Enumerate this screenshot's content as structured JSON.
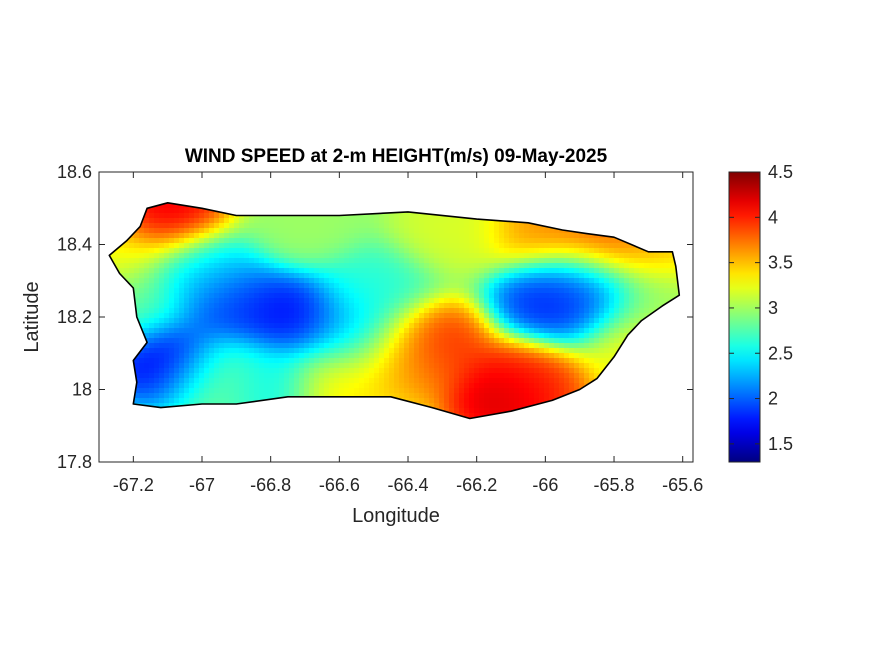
{
  "chart_data": {
    "type": "heatmap",
    "title": "WIND SPEED at 2-m HEIGHT(m/s) 09-May-2025",
    "xlabel": "Longitude",
    "ylabel": "Latitude",
    "xlim": [
      -67.3,
      -65.57
    ],
    "ylim": [
      17.8,
      18.6
    ],
    "xticks": [
      -67.2,
      -67,
      -66.8,
      -66.6,
      -66.4,
      -66.2,
      -66,
      -65.8,
      -65.6
    ],
    "xtick_labels": [
      "-67.2",
      "-67",
      "-66.8",
      "-66.6",
      "-66.4",
      "-66.2",
      "-66",
      "-65.8",
      "-65.6"
    ],
    "yticks": [
      17.8,
      18,
      18.2,
      18.4,
      18.6
    ],
    "ytick_labels": [
      "17.8",
      "18",
      "18.2",
      "18.4",
      "18.6"
    ],
    "colormap": "jet",
    "colorbar": {
      "range": [
        1.3,
        4.5
      ],
      "ticks": [
        1.5,
        2,
        2.5,
        3,
        3.5,
        4,
        4.5
      ],
      "tick_labels": [
        "1.5",
        "2",
        "2.5",
        "3",
        "3.5",
        "4",
        "4.5"
      ]
    },
    "background_value": 2.9,
    "field_features": [
      {
        "lon": -67.1,
        "lat": 18.08,
        "value": 1.5
      },
      {
        "lon": -66.74,
        "lat": 18.2,
        "value": 1.6
      },
      {
        "lon": -66.92,
        "lat": 18.24,
        "value": 1.8
      },
      {
        "lon": -65.97,
        "lat": 18.24,
        "value": 1.7
      },
      {
        "lon": -65.88,
        "lat": 18.28,
        "value": 1.9
      },
      {
        "lon": -67.0,
        "lat": 18.33,
        "value": 2.4
      },
      {
        "lon": -66.5,
        "lat": 18.28,
        "value": 2.6
      },
      {
        "lon": -66.55,
        "lat": 18.15,
        "value": 2.3
      },
      {
        "lon": -66.82,
        "lat": 18.02,
        "value": 2.4
      },
      {
        "lon": -67.2,
        "lat": 18.23,
        "value": 2.8
      },
      {
        "lon": -67.1,
        "lat": 18.48,
        "value": 4.3
      },
      {
        "lon": -66.12,
        "lat": 17.98,
        "value": 4.4
      },
      {
        "lon": -66.33,
        "lat": 18.12,
        "value": 4.1
      },
      {
        "lon": -66.42,
        "lat": 18.07,
        "value": 3.6
      },
      {
        "lon": -66.04,
        "lat": 18.02,
        "value": 4.0
      },
      {
        "lon": -65.82,
        "lat": 18.4,
        "value": 4.0
      },
      {
        "lon": -65.66,
        "lat": 18.4,
        "value": 3.5
      },
      {
        "lon": -66.0,
        "lat": 18.44,
        "value": 3.7
      },
      {
        "lon": -66.28,
        "lat": 18.44,
        "value": 3.2
      },
      {
        "lon": -66.6,
        "lat": 18.02,
        "value": 3.4
      },
      {
        "lon": -66.95,
        "lat": 18.03,
        "value": 3.0
      },
      {
        "lon": -65.74,
        "lat": 18.12,
        "value": 3.3
      },
      {
        "lon": -65.68,
        "lat": 18.25,
        "value": 3.0
      },
      {
        "lon": -66.7,
        "lat": 18.45,
        "value": 3.0
      },
      {
        "lon": -67.26,
        "lat": 18.37,
        "value": 3.3
      }
    ],
    "island_outline": [
      [
        -67.27,
        18.37
      ],
      [
        -67.22,
        18.41
      ],
      [
        -67.18,
        18.45
      ],
      [
        -67.16,
        18.5
      ],
      [
        -67.1,
        18.515
      ],
      [
        -67.0,
        18.5
      ],
      [
        -66.9,
        18.48
      ],
      [
        -66.8,
        18.48
      ],
      [
        -66.6,
        18.48
      ],
      [
        -66.4,
        18.49
      ],
      [
        -66.2,
        18.47
      ],
      [
        -66.05,
        18.46
      ],
      [
        -65.95,
        18.44
      ],
      [
        -65.88,
        18.43
      ],
      [
        -65.8,
        18.42
      ],
      [
        -65.7,
        18.38
      ],
      [
        -65.63,
        18.38
      ],
      [
        -65.62,
        18.34
      ],
      [
        -65.61,
        18.26
      ],
      [
        -65.66,
        18.23
      ],
      [
        -65.72,
        18.19
      ],
      [
        -65.76,
        18.15
      ],
      [
        -65.8,
        18.09
      ],
      [
        -65.85,
        18.03
      ],
      [
        -65.9,
        18.0
      ],
      [
        -65.98,
        17.97
      ],
      [
        -66.1,
        17.94
      ],
      [
        -66.22,
        17.92
      ],
      [
        -66.33,
        17.95
      ],
      [
        -66.45,
        17.98
      ],
      [
        -66.6,
        17.98
      ],
      [
        -66.75,
        17.98
      ],
      [
        -66.9,
        17.96
      ],
      [
        -67.0,
        17.96
      ],
      [
        -67.12,
        17.95
      ],
      [
        -67.2,
        17.96
      ],
      [
        -67.19,
        18.02
      ],
      [
        -67.2,
        18.08
      ],
      [
        -67.16,
        18.13
      ],
      [
        -67.19,
        18.2
      ],
      [
        -67.2,
        18.28
      ],
      [
        -67.24,
        18.32
      ],
      [
        -67.27,
        18.37
      ]
    ]
  }
}
